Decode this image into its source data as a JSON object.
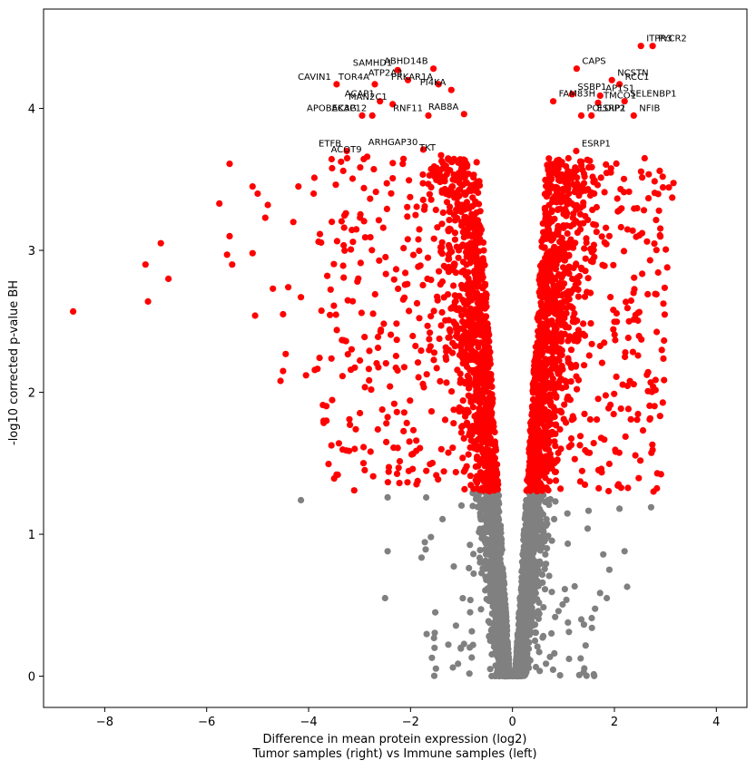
{
  "chart_data": {
    "type": "scatter",
    "title": "",
    "xlabel": [
      "Difference in mean protein expression (log2)",
      "Tumor samples (right) vs Immune samples (left)"
    ],
    "ylabel": "-log10 corrected p-value BH",
    "xlim": [
      -9.2,
      4.6
    ],
    "ylim": [
      -0.22,
      4.7
    ],
    "xticks": [
      -8,
      -6,
      -4,
      -2,
      0,
      2,
      4
    ],
    "xtick_labels": [
      "−8",
      "−6",
      "−4",
      "−2",
      "0",
      "2",
      "4"
    ],
    "yticks": [
      0,
      1,
      2,
      3,
      4
    ],
    "ytick_labels": [
      "0",
      "1",
      "2",
      "3",
      "4"
    ],
    "significance_threshold": 1.3,
    "grid": false,
    "colors": {
      "significant": "#ff0000",
      "not_significant": "#808080"
    },
    "series": [
      {
        "role": "significant",
        "color": "#ff0000",
        "points_notable": [
          [
            -8.62,
            2.57
          ],
          [
            -7.2,
            2.9
          ],
          [
            -7.15,
            2.64
          ],
          [
            -6.9,
            3.05
          ],
          [
            -6.75,
            2.8
          ],
          [
            -5.75,
            3.33
          ],
          [
            -5.6,
            2.97
          ],
          [
            -5.55,
            3.1
          ],
          [
            -5.5,
            2.9
          ],
          [
            -5.55,
            3.61
          ],
          [
            -5.1,
            2.98
          ],
          [
            -5.05,
            2.54
          ],
          [
            -5.1,
            3.45
          ],
          [
            -5.0,
            3.4
          ],
          [
            -4.85,
            3.23
          ],
          [
            -4.8,
            3.32
          ],
          [
            -4.7,
            2.73
          ],
          [
            -4.5,
            2.55
          ],
          [
            -4.45,
            2.27
          ],
          [
            -4.5,
            2.15
          ],
          [
            -4.55,
            2.08
          ],
          [
            -4.4,
            2.74
          ],
          [
            -4.3,
            3.2
          ],
          [
            -4.2,
            3.45
          ],
          [
            -4.15,
            2.67
          ],
          [
            -4.05,
            2.12
          ],
          [
            -3.9,
            3.4
          ],
          [
            -3.65,
            1.8
          ],
          [
            -3.45,
            1.42
          ],
          [
            -3.2,
            1.81
          ]
        ],
        "points_labeled": [
          {
            "gene": "ITPR3",
            "x": 2.52,
            "y": 4.44
          },
          {
            "gene": "PYCR2",
            "x": 2.75,
            "y": 4.44
          },
          {
            "gene": "RCC1",
            "x": 2.1,
            "y": 4.17
          },
          {
            "gene": "CAPS",
            "x": 1.26,
            "y": 4.28
          },
          {
            "gene": "NCSTN",
            "x": 1.95,
            "y": 4.2
          },
          {
            "gene": "AP1S1",
            "x": 1.72,
            "y": 4.09
          },
          {
            "gene": "SSBP1",
            "x": 1.17,
            "y": 4.1
          },
          {
            "gene": "FAM83H",
            "x": 0.8,
            "y": 4.05
          },
          {
            "gene": "TMCO1",
            "x": 1.68,
            "y": 4.04
          },
          {
            "gene": "SELENBP1",
            "x": 2.2,
            "y": 4.05
          },
          {
            "gene": "POLDIP2",
            "x": 1.35,
            "y": 3.95
          },
          {
            "gene": "NFIB",
            "x": 2.38,
            "y": 3.95
          },
          {
            "gene": "ESRP1",
            "x": 1.55,
            "y": 3.95
          },
          {
            "gene": "SAMHD1",
            "x": -2.25,
            "y": 4.27
          },
          {
            "gene": "ABHD14B",
            "x": -1.55,
            "y": 4.28
          },
          {
            "gene": "ATP2A3",
            "x": -2.05,
            "y": 4.2
          },
          {
            "gene": "PRKAR1A",
            "x": -1.45,
            "y": 4.17
          },
          {
            "gene": "CAVIN1",
            "x": -3.45,
            "y": 4.17
          },
          {
            "gene": "TOR4A",
            "x": -2.7,
            "y": 4.17
          },
          {
            "gene": "PI4KA",
            "x": -1.2,
            "y": 4.13
          },
          {
            "gene": "ACAP1",
            "x": -2.6,
            "y": 4.05
          },
          {
            "gene": "MAN2C1",
            "x": -2.35,
            "y": 4.03
          },
          {
            "gene": "APOBEC3G",
            "x": -2.95,
            "y": 3.95
          },
          {
            "gene": "AKAP12",
            "x": -2.75,
            "y": 3.95
          },
          {
            "gene": "RNF11",
            "x": -1.65,
            "y": 3.95
          },
          {
            "gene": "RAB8A",
            "x": -0.95,
            "y": 3.96
          },
          {
            "gene": "ARHGAP30",
            "x": -1.75,
            "y": 3.71
          },
          {
            "gene": "ETFB",
            "x": -3.25,
            "y": 3.7
          },
          {
            "gene": "ACOT9",
            "x": -2.85,
            "y": 3.66
          },
          {
            "gene": "TKT",
            "x": -1.4,
            "y": 3.67
          },
          {
            "gene": "ESRP1",
            "x": 1.25,
            "y": 3.7
          }
        ]
      },
      {
        "role": "not_significant",
        "color": "#808080",
        "points_notable": [
          [
            -4.15,
            1.24
          ],
          [
            -2.45,
            1.26
          ],
          [
            -2.5,
            0.55
          ],
          [
            -2.45,
            0.88
          ],
          [
            -1.6,
            0.98
          ],
          [
            2.1,
            1.18
          ],
          [
            2.2,
            0.88
          ],
          [
            2.25,
            0.63
          ],
          [
            1.9,
            0.75
          ],
          [
            1.85,
            0.55
          ],
          [
            1.35,
            0.4
          ],
          [
            2.72,
            1.19
          ],
          [
            0.0,
            0.0
          ]
        ]
      }
    ]
  }
}
